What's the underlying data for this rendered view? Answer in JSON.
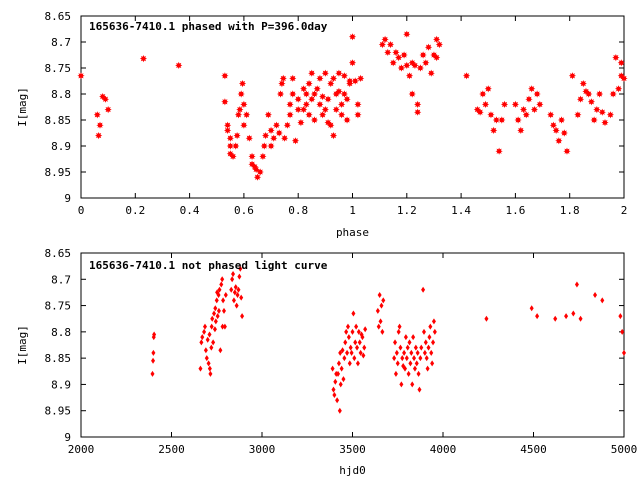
{
  "chart_data": [
    {
      "type": "scatter",
      "title": "165636-7410.1 phased with P=396.0day",
      "xlabel": "phase",
      "ylabel": "I[mag]",
      "xlim": [
        0,
        2
      ],
      "ylim": [
        8.65,
        9.0
      ],
      "y_inverted": true,
      "x_ticks": [
        "0",
        "0.2",
        "0.4",
        "0.6",
        "0.8",
        "1",
        "1.2",
        "1.4",
        "1.6",
        "1.8",
        "2"
      ],
      "y_ticks": [
        "8.65",
        "8.7",
        "8.75",
        "8.8",
        "8.85",
        "8.9",
        "8.95",
        "9"
      ],
      "marker": "star",
      "color": "#ff0000",
      "points": [
        [
          0.0,
          8.765
        ],
        [
          0.06,
          8.84
        ],
        [
          0.065,
          8.88
        ],
        [
          0.07,
          8.86
        ],
        [
          0.08,
          8.805
        ],
        [
          0.09,
          8.81
        ],
        [
          0.1,
          8.83
        ],
        [
          0.23,
          8.732
        ],
        [
          0.36,
          8.745
        ],
        [
          0.53,
          8.765
        ],
        [
          0.53,
          8.815
        ],
        [
          0.54,
          8.86
        ],
        [
          0.54,
          8.87
        ],
        [
          0.55,
          8.885
        ],
        [
          0.55,
          8.9
        ],
        [
          0.55,
          8.915
        ],
        [
          0.56,
          8.92
        ],
        [
          0.57,
          8.9
        ],
        [
          0.575,
          8.88
        ],
        [
          0.58,
          8.84
        ],
        [
          0.585,
          8.83
        ],
        [
          0.59,
          8.8
        ],
        [
          0.595,
          8.78
        ],
        [
          0.6,
          8.86
        ],
        [
          0.6,
          8.82
        ],
        [
          0.61,
          8.84
        ],
        [
          0.62,
          8.885
        ],
        [
          0.63,
          8.92
        ],
        [
          0.63,
          8.935
        ],
        [
          0.64,
          8.94
        ],
        [
          0.645,
          8.945
        ],
        [
          0.65,
          8.96
        ],
        [
          0.66,
          8.95
        ],
        [
          0.67,
          8.92
        ],
        [
          0.675,
          8.9
        ],
        [
          0.68,
          8.88
        ],
        [
          0.69,
          8.84
        ],
        [
          0.7,
          8.87
        ],
        [
          0.7,
          8.9
        ],
        [
          0.71,
          8.885
        ],
        [
          0.72,
          8.86
        ],
        [
          0.73,
          8.875
        ],
        [
          0.735,
          8.8
        ],
        [
          0.74,
          8.78
        ],
        [
          0.745,
          8.77
        ],
        [
          0.75,
          8.885
        ],
        [
          0.76,
          8.86
        ],
        [
          0.77,
          8.84
        ],
        [
          0.77,
          8.82
        ],
        [
          0.78,
          8.8
        ],
        [
          0.78,
          8.77
        ],
        [
          0.79,
          8.89
        ],
        [
          0.8,
          8.83
        ],
        [
          0.8,
          8.81
        ],
        [
          0.81,
          8.855
        ],
        [
          0.82,
          8.79
        ],
        [
          0.82,
          8.83
        ],
        [
          0.83,
          8.8
        ],
        [
          0.83,
          8.82
        ],
        [
          0.84,
          8.84
        ],
        [
          0.84,
          8.78
        ],
        [
          0.85,
          8.76
        ],
        [
          0.85,
          8.81
        ],
        [
          0.86,
          8.85
        ],
        [
          0.86,
          8.8
        ],
        [
          0.87,
          8.79
        ],
        [
          0.88,
          8.82
        ],
        [
          0.88,
          8.77
        ],
        [
          0.89,
          8.84
        ],
        [
          0.89,
          8.805
        ],
        [
          0.9,
          8.76
        ],
        [
          0.9,
          8.83
        ],
        [
          0.91,
          8.81
        ],
        [
          0.91,
          8.855
        ],
        [
          0.92,
          8.86
        ],
        [
          0.92,
          8.78
        ],
        [
          0.93,
          8.88
        ],
        [
          0.93,
          8.77
        ],
        [
          0.94,
          8.8
        ],
        [
          0.94,
          8.83
        ],
        [
          0.95,
          8.795
        ],
        [
          0.95,
          8.76
        ],
        [
          0.96,
          8.84
        ],
        [
          0.96,
          8.82
        ],
        [
          0.97,
          8.765
        ],
        [
          0.97,
          8.8
        ],
        [
          0.98,
          8.85
        ],
        [
          0.98,
          8.81
        ],
        [
          0.99,
          8.78
        ],
        [
          0.99,
          8.775
        ],
        [
          1.0,
          8.74
        ],
        [
          1.0,
          8.69
        ],
        [
          1.01,
          8.775
        ],
        [
          1.02,
          8.82
        ],
        [
          1.02,
          8.84
        ],
        [
          1.03,
          8.77
        ],
        [
          1.11,
          8.705
        ],
        [
          1.12,
          8.695
        ],
        [
          1.13,
          8.72
        ],
        [
          1.14,
          8.705
        ],
        [
          1.15,
          8.74
        ],
        [
          1.16,
          8.72
        ],
        [
          1.17,
          8.73
        ],
        [
          1.18,
          8.75
        ],
        [
          1.19,
          8.725
        ],
        [
          1.2,
          8.745
        ],
        [
          1.2,
          8.685
        ],
        [
          1.21,
          8.765
        ],
        [
          1.22,
          8.8
        ],
        [
          1.22,
          8.74
        ],
        [
          1.23,
          8.745
        ],
        [
          1.24,
          8.82
        ],
        [
          1.24,
          8.835
        ],
        [
          1.25,
          8.75
        ],
        [
          1.26,
          8.725
        ],
        [
          1.27,
          8.74
        ],
        [
          1.28,
          8.71
        ],
        [
          1.29,
          8.76
        ],
        [
          1.3,
          8.725
        ],
        [
          1.31,
          8.73
        ],
        [
          1.31,
          8.695
        ],
        [
          1.32,
          8.705
        ],
        [
          1.42,
          8.765
        ],
        [
          1.46,
          8.83
        ],
        [
          1.47,
          8.835
        ],
        [
          1.48,
          8.8
        ],
        [
          1.49,
          8.82
        ],
        [
          1.5,
          8.79
        ],
        [
          1.51,
          8.84
        ],
        [
          1.52,
          8.87
        ],
        [
          1.53,
          8.85
        ],
        [
          1.54,
          8.91
        ],
        [
          1.55,
          8.85
        ],
        [
          1.56,
          8.82
        ],
        [
          1.6,
          8.82
        ],
        [
          1.61,
          8.85
        ],
        [
          1.62,
          8.87
        ],
        [
          1.63,
          8.83
        ],
        [
          1.64,
          8.84
        ],
        [
          1.65,
          8.81
        ],
        [
          1.66,
          8.79
        ],
        [
          1.67,
          8.83
        ],
        [
          1.68,
          8.8
        ],
        [
          1.69,
          8.82
        ],
        [
          1.73,
          8.84
        ],
        [
          1.74,
          8.86
        ],
        [
          1.75,
          8.87
        ],
        [
          1.76,
          8.89
        ],
        [
          1.77,
          8.85
        ],
        [
          1.78,
          8.875
        ],
        [
          1.79,
          8.91
        ],
        [
          1.81,
          8.765
        ],
        [
          1.83,
          8.84
        ],
        [
          1.84,
          8.81
        ],
        [
          1.85,
          8.78
        ],
        [
          1.86,
          8.795
        ],
        [
          1.87,
          8.8
        ],
        [
          1.88,
          8.815
        ],
        [
          1.89,
          8.85
        ],
        [
          1.9,
          8.83
        ],
        [
          1.91,
          8.8
        ],
        [
          1.92,
          8.835
        ],
        [
          1.93,
          8.855
        ],
        [
          1.95,
          8.84
        ],
        [
          1.96,
          8.8
        ],
        [
          1.97,
          8.73
        ],
        [
          1.98,
          8.79
        ],
        [
          1.99,
          8.74
        ],
        [
          1.99,
          8.765
        ],
        [
          2.0,
          8.77
        ]
      ]
    },
    {
      "type": "scatter",
      "title": "165636-7410.1 not phased light curve",
      "xlabel": "hjd0",
      "ylabel": "I[mag]",
      "xlim": [
        2000,
        5000
      ],
      "ylim": [
        8.65,
        9.0
      ],
      "y_inverted": true,
      "x_ticks": [
        "2000",
        "2500",
        "3000",
        "3500",
        "4000",
        "4500",
        "5000"
      ],
      "y_ticks": [
        "8.65",
        "8.7",
        "8.75",
        "8.8",
        "8.85",
        "8.9",
        "8.95",
        "9"
      ],
      "marker": "diamond",
      "color": "#ff0000",
      "points": [
        [
          2395,
          8.88
        ],
        [
          2398,
          8.855
        ],
        [
          2400,
          8.84
        ],
        [
          2402,
          8.81
        ],
        [
          2404,
          8.805
        ],
        [
          2660,
          8.87
        ],
        [
          2665,
          8.82
        ],
        [
          2670,
          8.81
        ],
        [
          2680,
          8.8
        ],
        [
          2685,
          8.79
        ],
        [
          2690,
          8.835
        ],
        [
          2695,
          8.85
        ],
        [
          2700,
          8.815
        ],
        [
          2705,
          8.86
        ],
        [
          2710,
          8.805
        ],
        [
          2712,
          8.87
        ],
        [
          2715,
          8.88
        ],
        [
          2720,
          8.83
        ],
        [
          2722,
          8.79
        ],
        [
          2725,
          8.775
        ],
        [
          2730,
          8.82
        ],
        [
          2735,
          8.765
        ],
        [
          2740,
          8.795
        ],
        [
          2742,
          8.755
        ],
        [
          2745,
          8.78
        ],
        [
          2750,
          8.74
        ],
        [
          2752,
          8.725
        ],
        [
          2755,
          8.77
        ],
        [
          2760,
          8.73
        ],
        [
          2762,
          8.76
        ],
        [
          2765,
          8.72
        ],
        [
          2770,
          8.835
        ],
        [
          2775,
          8.71
        ],
        [
          2780,
          8.7
        ],
        [
          2782,
          8.79
        ],
        [
          2785,
          8.74
        ],
        [
          2790,
          8.76
        ],
        [
          2795,
          8.79
        ],
        [
          2800,
          8.73
        ],
        [
          2830,
          8.72
        ],
        [
          2835,
          8.7
        ],
        [
          2840,
          8.69
        ],
        [
          2845,
          8.74
        ],
        [
          2850,
          8.725
        ],
        [
          2855,
          8.715
        ],
        [
          2860,
          8.75
        ],
        [
          2865,
          8.73
        ],
        [
          2870,
          8.72
        ],
        [
          2875,
          8.695
        ],
        [
          2880,
          8.68
        ],
        [
          2885,
          8.735
        ],
        [
          2890,
          8.77
        ],
        [
          3390,
          8.87
        ],
        [
          3395,
          8.91
        ],
        [
          3400,
          8.92
        ],
        [
          3405,
          8.895
        ],
        [
          3410,
          8.88
        ],
        [
          3415,
          8.93
        ],
        [
          3420,
          8.88
        ],
        [
          3425,
          8.86
        ],
        [
          3430,
          8.95
        ],
        [
          3432,
          8.84
        ],
        [
          3435,
          8.9
        ],
        [
          3440,
          8.87
        ],
        [
          3445,
          8.835
        ],
        [
          3450,
          8.89
        ],
        [
          3455,
          8.85
        ],
        [
          3460,
          8.82
        ],
        [
          3465,
          8.8
        ],
        [
          3470,
          8.84
        ],
        [
          3475,
          8.79
        ],
        [
          3480,
          8.81
        ],
        [
          3485,
          8.86
        ],
        [
          3490,
          8.83
        ],
        [
          3495,
          8.84
        ],
        [
          3500,
          8.8
        ],
        [
          3505,
          8.765
        ],
        [
          3510,
          8.85
        ],
        [
          3515,
          8.82
        ],
        [
          3520,
          8.79
        ],
        [
          3525,
          8.83
        ],
        [
          3530,
          8.86
        ],
        [
          3535,
          8.8
        ],
        [
          3540,
          8.82
        ],
        [
          3545,
          8.84
        ],
        [
          3550,
          8.805
        ],
        [
          3555,
          8.81
        ],
        [
          3560,
          8.845
        ],
        [
          3565,
          8.83
        ],
        [
          3570,
          8.795
        ],
        [
          3640,
          8.76
        ],
        [
          3645,
          8.79
        ],
        [
          3650,
          8.73
        ],
        [
          3655,
          8.78
        ],
        [
          3660,
          8.75
        ],
        [
          3665,
          8.8
        ],
        [
          3670,
          8.74
        ],
        [
          3730,
          8.85
        ],
        [
          3735,
          8.82
        ],
        [
          3740,
          8.88
        ],
        [
          3745,
          8.84
        ],
        [
          3750,
          8.86
        ],
        [
          3755,
          8.8
        ],
        [
          3760,
          8.79
        ],
        [
          3765,
          8.83
        ],
        [
          3770,
          8.9
        ],
        [
          3775,
          8.85
        ],
        [
          3780,
          8.865
        ],
        [
          3785,
          8.84
        ],
        [
          3790,
          8.87
        ],
        [
          3795,
          8.81
        ],
        [
          3800,
          8.85
        ],
        [
          3805,
          8.83
        ],
        [
          3810,
          8.88
        ],
        [
          3815,
          8.82
        ],
        [
          3820,
          8.86
        ],
        [
          3825,
          8.84
        ],
        [
          3830,
          8.9
        ],
        [
          3835,
          8.81
        ],
        [
          3840,
          8.85
        ],
        [
          3845,
          8.87
        ],
        [
          3850,
          8.83
        ],
        [
          3855,
          8.86
        ],
        [
          3860,
          8.84
        ],
        [
          3865,
          8.88
        ],
        [
          3870,
          8.91
        ],
        [
          3875,
          8.85
        ],
        [
          3880,
          8.83
        ],
        [
          3890,
          8.72
        ],
        [
          3895,
          8.8
        ],
        [
          3900,
          8.84
        ],
        [
          3905,
          8.82
        ],
        [
          3910,
          8.85
        ],
        [
          3915,
          8.87
        ],
        [
          3920,
          8.83
        ],
        [
          3925,
          8.81
        ],
        [
          3930,
          8.79
        ],
        [
          3935,
          8.84
        ],
        [
          3940,
          8.86
        ],
        [
          3945,
          8.82
        ],
        [
          3950,
          8.78
        ],
        [
          3955,
          8.8
        ],
        [
          4240,
          8.775
        ],
        [
          4490,
          8.755
        ],
        [
          4520,
          8.77
        ],
        [
          4620,
          8.775
        ],
        [
          4680,
          8.77
        ],
        [
          4720,
          8.765
        ],
        [
          4740,
          8.71
        ],
        [
          4760,
          8.775
        ],
        [
          4840,
          8.73
        ],
        [
          4880,
          8.74
        ],
        [
          4980,
          8.77
        ],
        [
          4990,
          8.8
        ],
        [
          5000,
          8.84
        ]
      ]
    }
  ]
}
